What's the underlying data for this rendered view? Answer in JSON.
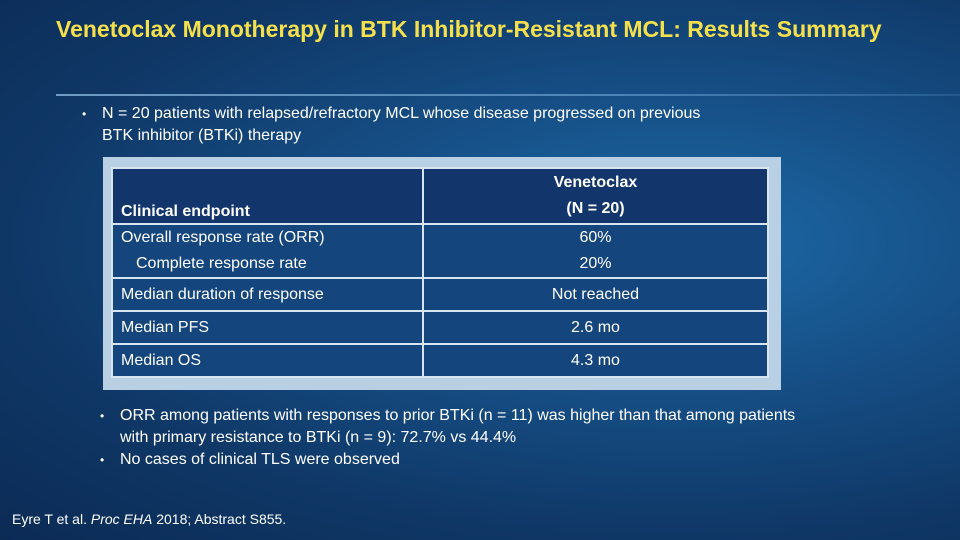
{
  "title": "Venetoclax Monotherapy in BTK Inhibitor-Resistant MCL: Results Summary",
  "intro_bullet": "N = 20 patients with relapsed/refractory MCL whose disease progressed on previous BTK inhibitor (BTKi) therapy",
  "table": {
    "header": {
      "endpoint": "Clinical endpoint",
      "arm_name": "Venetoclax",
      "arm_n": "(N = 20)"
    },
    "rows": [
      {
        "label": "Overall response rate (ORR)",
        "sublabel": "Complete response rate",
        "value": "60%",
        "subvalue": "20%"
      },
      {
        "label": "Median duration of response",
        "value": "Not reached"
      },
      {
        "label": "Median PFS",
        "value": "2.6 mo"
      },
      {
        "label": "Median OS",
        "value": "4.3 mo"
      }
    ]
  },
  "bullets": [
    "ORR among patients with responses to prior BTKi (n = 11) was higher than that among patients with primary resistance to BTKi (n = 9): 72.7% vs 44.4%",
    "No cases of clinical TLS were observed"
  ],
  "citation": {
    "authors": "Eyre T et al.",
    "journal": "Proc EHA",
    "rest": "2018; Abstract S855."
  }
}
